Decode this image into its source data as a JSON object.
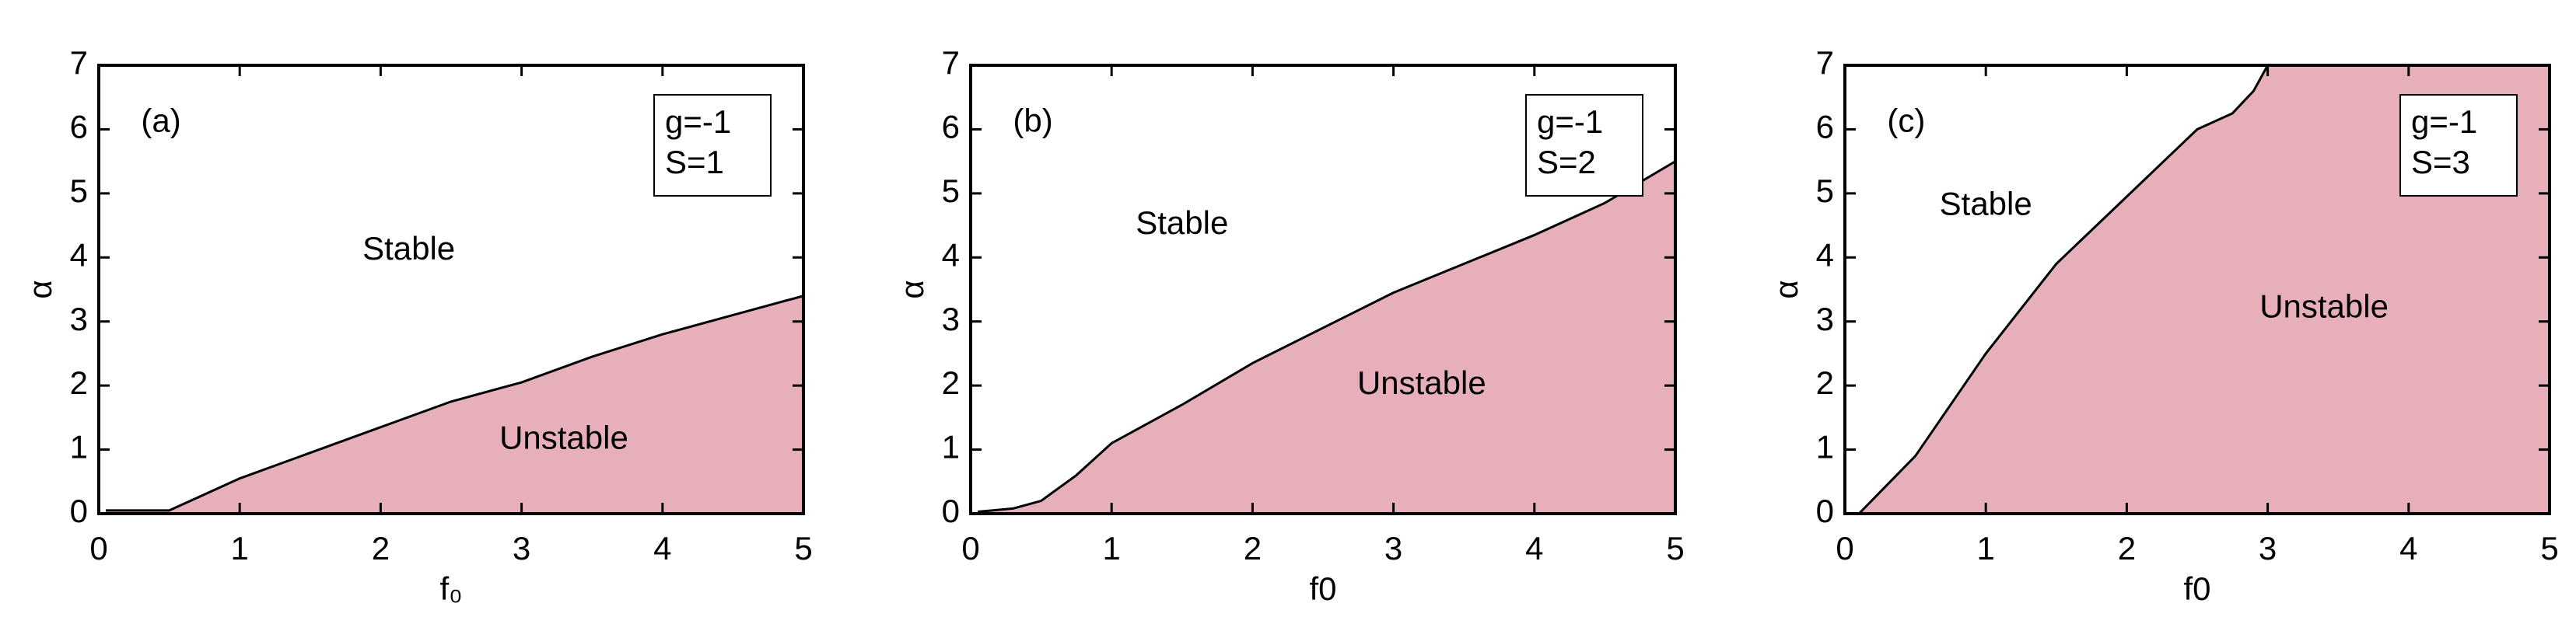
{
  "chart_data": [
    {
      "type": "area",
      "panel_label": "(a)",
      "color": "#e7afba",
      "x": [
        0.05,
        0.5,
        0.6,
        0.8,
        1,
        1.5,
        2,
        2.5,
        3,
        3.5,
        4,
        4.5,
        5
      ],
      "values": [
        0.05,
        0.05,
        0.15,
        0.35,
        0.55,
        0.95,
        1.35,
        1.75,
        2.05,
        2.45,
        2.8,
        3.1,
        3.4
      ],
      "xlim": [
        0,
        5
      ],
      "ylim": [
        0,
        7
      ],
      "xticks": [
        0,
        1,
        2,
        3,
        4,
        5
      ],
      "yticks": [
        0,
        1,
        2,
        3,
        4,
        5,
        6,
        7
      ],
      "xlabel": "f₀",
      "ylabel": "α",
      "annotations": [
        "Stable",
        "Unstable"
      ],
      "box_text": [
        "g=-1",
        "S=1"
      ]
    },
    {
      "type": "area",
      "panel_label": "(b)",
      "color": "#e7afba",
      "x": [
        0.05,
        0.3,
        0.5,
        0.75,
        1,
        1.5,
        2,
        2.5,
        3,
        3.5,
        4,
        4.5,
        5
      ],
      "values": [
        0.03,
        0.08,
        0.2,
        0.6,
        1.1,
        1.7,
        2.35,
        2.9,
        3.45,
        3.9,
        4.35,
        4.85,
        5.5
      ],
      "xlim": [
        0,
        5
      ],
      "ylim": [
        0,
        7
      ],
      "xticks": [
        0,
        1,
        2,
        3,
        4,
        5
      ],
      "yticks": [
        0,
        1,
        2,
        3,
        4,
        5,
        6,
        7
      ],
      "xlabel": "f0",
      "ylabel": "α",
      "annotations": [
        "Stable",
        "Unstable"
      ],
      "box_text": [
        "g=-1",
        "S=2"
      ]
    },
    {
      "type": "area",
      "panel_label": "(c)",
      "color": "#e7afba",
      "x": [
        0.1,
        0.5,
        1,
        1.5,
        2,
        2.5,
        2.75,
        2.9,
        3,
        5
      ],
      "values": [
        0,
        0.9,
        2.5,
        3.9,
        4.95,
        6,
        6.25,
        6.6,
        7,
        7
      ],
      "xlim": [
        0,
        5
      ],
      "ylim": [
        0,
        7
      ],
      "xticks": [
        0,
        1,
        2,
        3,
        4,
        5
      ],
      "yticks": [
        0,
        1,
        2,
        3,
        4,
        5,
        6,
        7
      ],
      "xlabel": "f0",
      "ylabel": "α",
      "annotations": [
        "Stable",
        "Unstable"
      ],
      "box_text": [
        "g=-1",
        "S=3"
      ]
    }
  ]
}
